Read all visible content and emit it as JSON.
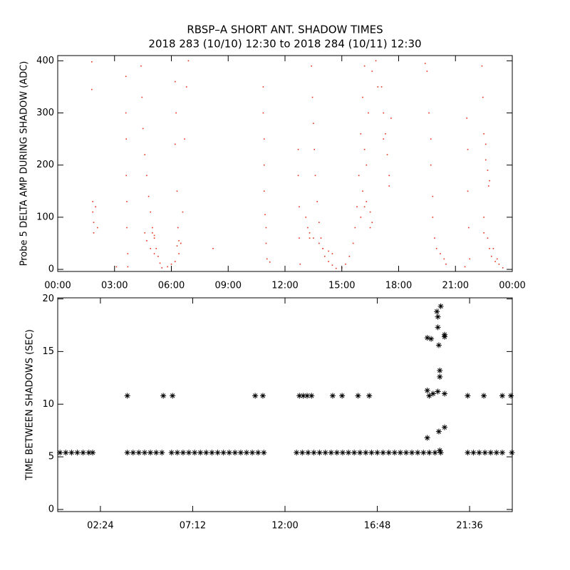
{
  "chart_data": [
    {
      "type": "scatter",
      "title": "RBSP–A SHORT ANT. SHADOW TIMES",
      "subtitle": "2018 283 (10/10) 12:30 to 2018 284 (10/11) 12:30",
      "ylabel": "Probe 5 DELTA AMP DURING SHADOW (ADC)",
      "xlim": [
        0,
        24
      ],
      "ylim": [
        -4,
        410
      ],
      "xticks": [
        {
          "value": 0,
          "label": "00:00"
        },
        {
          "value": 3,
          "label": "03:00"
        },
        {
          "value": 6,
          "label": "06:00"
        },
        {
          "value": 9,
          "label": "09:00"
        },
        {
          "value": 12,
          "label": "12:00"
        },
        {
          "value": 15,
          "label": "15:00"
        },
        {
          "value": 18,
          "label": "18:00"
        },
        {
          "value": 21,
          "label": "21:00"
        },
        {
          "value": 24,
          "label": "00:00"
        }
      ],
      "yticks": [
        0,
        100,
        200,
        300,
        400
      ],
      "series": [
        {
          "color": "#e8301a",
          "marker": "dot",
          "x": [
            1.8,
            1.8,
            1.85,
            1.85,
            1.9,
            1.9,
            2.0,
            2.1,
            3.1,
            3.6,
            3.6,
            3.62,
            3.62,
            3.65,
            3.65,
            3.7,
            3.7,
            4.4,
            4.45,
            4.5,
            4.6,
            4.7,
            4.8,
            4.9,
            5.0,
            5.1,
            5.2,
            5.3,
            5.4,
            5.5,
            4.6,
            4.7,
            4.9,
            5.1,
            5.0,
            5.1,
            6.2,
            6.25,
            6.2,
            6.3,
            6.35,
            5.8,
            6.0,
            6.2,
            6.4,
            6.5,
            6.6,
            6.7,
            6.8,
            6.9,
            6.3,
            6.4,
            8.2,
            10.85,
            10.85,
            10.9,
            10.9,
            10.9,
            10.95,
            11.0,
            11.0,
            11.05,
            11.2,
            12.7,
            12.7,
            12.75,
            12.75,
            12.8,
            13.1,
            13.2,
            13.3,
            13.4,
            13.45,
            13.5,
            13.55,
            13.6,
            13.7,
            13.8,
            13.9,
            14.0,
            14.1,
            14.3,
            14.5,
            14.7,
            13.3,
            13.5,
            13.8,
            14.0,
            14.3,
            14.5,
            15.0,
            15.2,
            15.4,
            15.6,
            15.7,
            15.8,
            15.9,
            16.0,
            16.1,
            16.2,
            16.1,
            16.3,
            16.5,
            16.6,
            16.3,
            16.4,
            16.6,
            16.8,
            16.9,
            16.0,
            16.2,
            16.5,
            16.2,
            17.1,
            17.2,
            17.3,
            17.4,
            17.5,
            17.5,
            17.2,
            17.6,
            19.4,
            19.5,
            19.6,
            19.7,
            19.7,
            19.8,
            19.8,
            19.9,
            20.0,
            20.2,
            20.4,
            20.5,
            21.5,
            21.6,
            21.65,
            21.65,
            21.7,
            21.75,
            22.4,
            22.45,
            22.5,
            22.5,
            22.5,
            22.6,
            22.7,
            22.8,
            22.7,
            22.8,
            22.9,
            23.1,
            23.3,
            23.5,
            23.0,
            23.2,
            22.6,
            22.75
          ],
          "values": [
            398,
            345,
            130,
            110,
            90,
            70,
            120,
            80,
            5,
            370,
            300,
            250,
            180,
            130,
            80,
            30,
            5,
            390,
            330,
            270,
            220,
            180,
            140,
            110,
            80,
            60,
            40,
            25,
            12,
            3,
            70,
            55,
            40,
            30,
            70,
            65,
            360,
            300,
            240,
            150,
            80,
            5,
            10,
            15,
            30,
            50,
            110,
            250,
            350,
            400,
            45,
            55,
            40,
            350,
            300,
            250,
            200,
            150,
            105,
            80,
            50,
            20,
            14,
            230,
            180,
            120,
            60,
            10,
            100,
            80,
            60,
            390,
            330,
            280,
            230,
            180,
            130,
            90,
            60,
            40,
            25,
            15,
            8,
            2,
            70,
            60,
            50,
            40,
            35,
            30,
            3,
            10,
            25,
            50,
            80,
            120,
            180,
            260,
            330,
            390,
            150,
            130,
            110,
            90,
            200,
            300,
            380,
            400,
            350,
            100,
            120,
            80,
            230,
            350,
            300,
            260,
            220,
            180,
            160,
            250,
            290,
            395,
            380,
            300,
            250,
            200,
            140,
            100,
            60,
            40,
            30,
            20,
            10,
            5,
            290,
            230,
            150,
            80,
            20,
            390,
            330,
            260,
            100,
            70,
            210,
            190,
            170,
            60,
            40,
            25,
            15,
            10,
            3,
            40,
            20,
            240,
            160
          ]
        }
      ]
    },
    {
      "type": "scatter",
      "ylabel": "TIME BETWEEN SHADOWS (SEC)",
      "xlim": [
        0.18,
        23.82
      ],
      "ylim": [
        -0.2,
        20.1
      ],
      "xticks": [
        {
          "value": 2.4,
          "label": "02:24"
        },
        {
          "value": 7.2,
          "label": "07:12"
        },
        {
          "value": 12,
          "label": "12:00"
        },
        {
          "value": 16.8,
          "label": "16:48"
        },
        {
          "value": 21.6,
          "label": "21:36"
        }
      ],
      "yticks": [
        0,
        5,
        10,
        15,
        20
      ],
      "series": [
        {
          "color": "#000000",
          "marker": "asterisk",
          "x": [
            0.3,
            0.6,
            0.9,
            1.2,
            1.5,
            1.8,
            2.0,
            3.8,
            4.1,
            4.4,
            4.7,
            5.0,
            5.3,
            5.6,
            6.1,
            6.4,
            6.7,
            7.0,
            7.3,
            7.6,
            7.9,
            8.2,
            8.5,
            8.8,
            9.1,
            9.4,
            9.7,
            10.0,
            10.3,
            10.6,
            10.9,
            12.6,
            12.9,
            13.2,
            13.5,
            13.8,
            14.1,
            14.4,
            14.7,
            15.0,
            15.3,
            15.6,
            15.9,
            16.2,
            16.5,
            16.8,
            17.1,
            17.4,
            17.7,
            18.0,
            18.3,
            18.6,
            18.9,
            19.2,
            19.5,
            19.8,
            20.1,
            21.5,
            21.8,
            22.1,
            22.4,
            22.7,
            23.0,
            23.3,
            23.8,
            3.8,
            5.67,
            6.15,
            10.45,
            10.85,
            12.75,
            12.95,
            13.15,
            13.38,
            14.48,
            14.97,
            15.8,
            16.38,
            21.5,
            22.34,
            23.3,
            23.75,
            19.4,
            19.6,
            19.4,
            19.5,
            19.7,
            19.4,
            19.9,
            19.95,
            19.95,
            20.1,
            20.0,
            20.05,
            20.05,
            19.95,
            20.0,
            20.05,
            20.3,
            20.3,
            20.3,
            20.3
          ],
          "values": [
            5.4,
            5.4,
            5.4,
            5.4,
            5.4,
            5.4,
            5.4,
            5.4,
            5.4,
            5.4,
            5.4,
            5.4,
            5.4,
            5.4,
            5.4,
            5.4,
            5.4,
            5.4,
            5.4,
            5.4,
            5.4,
            5.4,
            5.4,
            5.4,
            5.4,
            5.4,
            5.4,
            5.4,
            5.4,
            5.4,
            5.4,
            5.4,
            5.4,
            5.4,
            5.4,
            5.4,
            5.4,
            5.4,
            5.4,
            5.4,
            5.4,
            5.4,
            5.4,
            5.4,
            5.4,
            5.4,
            5.4,
            5.4,
            5.4,
            5.4,
            5.4,
            5.4,
            5.4,
            5.4,
            5.4,
            5.4,
            5.4,
            5.4,
            5.4,
            5.4,
            5.4,
            5.4,
            5.4,
            5.4,
            5.4,
            10.8,
            10.8,
            10.8,
            10.8,
            10.8,
            10.8,
            10.8,
            10.8,
            10.8,
            10.8,
            10.8,
            10.8,
            10.8,
            10.8,
            10.8,
            10.8,
            10.8,
            16.3,
            16.2,
            11.3,
            10.8,
            11.0,
            6.8,
            18.8,
            18.3,
            17.3,
            19.3,
            15.6,
            13.2,
            12.6,
            11.2,
            7.4,
            5.6,
            16.6,
            16.4,
            11.0,
            7.8
          ]
        }
      ]
    }
  ]
}
